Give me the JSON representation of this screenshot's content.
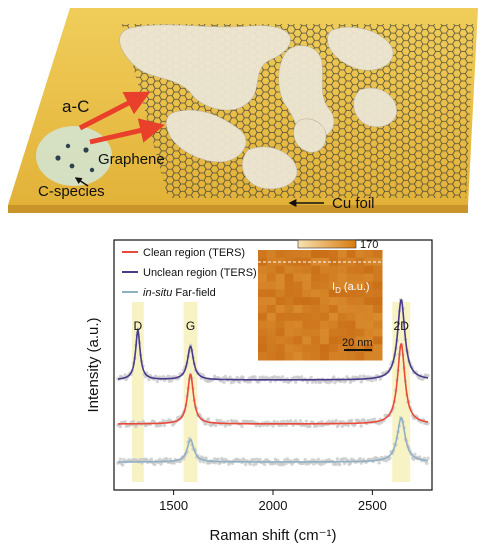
{
  "top_panel": {
    "labels": {
      "a_c": "a-C",
      "graphene": "Graphene",
      "c_species": "C-species",
      "cu_foil": "Cu foil"
    },
    "colors": {
      "foil": "#e9c24a",
      "lattice": "#4a4a4a",
      "arrow": "#e8402a"
    }
  },
  "chart_data": {
    "type": "line",
    "xlabel": "Raman shift (cm⁻¹)",
    "ylabel": "Intensity (a.u.)",
    "xlim": [
      1200,
      2800
    ],
    "xticks": [
      1500,
      2000,
      2500
    ],
    "peak_labels": [
      {
        "text": "D",
        "x": 1320
      },
      {
        "text": "G",
        "x": 1585
      },
      {
        "text": "2D",
        "x": 2645
      }
    ],
    "highlight_bands": [
      [
        1290,
        1350
      ],
      [
        1550,
        1620
      ],
      [
        2600,
        2690
      ]
    ],
    "legend": {
      "position": "top-left",
      "entries": [
        {
          "label": "Clean region (TERS)",
          "color": "#e84a3a"
        },
        {
          "label": "Unclean region (TERS)",
          "color": "#4a3a8c"
        },
        {
          "label_prefix": "in-situ",
          "label_rest": " Far-field",
          "color": "#8fb0c4"
        }
      ]
    },
    "series": [
      {
        "name": "Unclean region (TERS)",
        "color": "#4a3a8c",
        "offset": 2,
        "peaks": [
          {
            "center": 1320,
            "height": 0.62,
            "width": 14
          },
          {
            "center": 1585,
            "height": 0.42,
            "width": 18
          },
          {
            "center": 2645,
            "height": 1.0,
            "width": 22
          }
        ]
      },
      {
        "name": "Clean region (TERS)",
        "color": "#e84a3a",
        "offset": 1,
        "peaks": [
          {
            "center": 1585,
            "height": 0.62,
            "width": 18
          },
          {
            "center": 2645,
            "height": 1.0,
            "width": 22
          }
        ]
      },
      {
        "name": "in-situ Far-field",
        "color": "#8fb0c4",
        "offset": 0,
        "peaks": [
          {
            "center": 1585,
            "height": 0.28,
            "width": 20
          },
          {
            "center": 2645,
            "height": 0.55,
            "width": 24
          }
        ]
      }
    ],
    "inset": {
      "colorbar_max": "170",
      "map_label_main": "I",
      "map_label_sub": "D",
      "map_label_unit": " (a.u.)",
      "scalebar": "20 nm"
    }
  }
}
